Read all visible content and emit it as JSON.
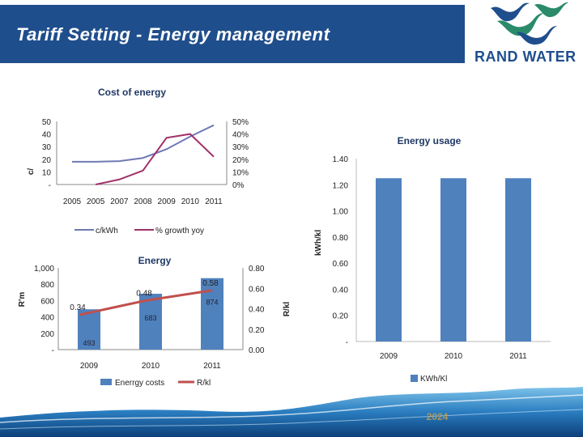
{
  "slide": {
    "title": "Tariff Setting - Energy management",
    "logo_text": "RAND WATER",
    "footer_label": "2024"
  },
  "colors": {
    "title_bar": "#1f4e8c",
    "series_blue_line": "#6e7ab3",
    "series_purple": "#a0306a",
    "bar_blue": "#4f81bd",
    "line_red": "#c0504d"
  },
  "chart_data": [
    {
      "type": "line",
      "title": "Cost of energy",
      "x": [
        "2005",
        "2005",
        "2007",
        "2008",
        "2009",
        "2010",
        "2011"
      ],
      "ylabel": "c/",
      "y_ticks": [
        "50",
        "40",
        "30",
        "20",
        "10",
        "-"
      ],
      "ylim": [
        0,
        50
      ],
      "y2_ticks": [
        "50%",
        "40%",
        "30%",
        "20%",
        "10%",
        "0%"
      ],
      "y2lim": [
        0,
        50
      ],
      "series": [
        {
          "name": "c/kWh",
          "axis": "left",
          "values": [
            18,
            18,
            18.5,
            21,
            28,
            38,
            47
          ]
        },
        {
          "name": "% growth yoy",
          "axis": "right",
          "values": [
            null,
            0,
            4,
            11,
            37,
            40,
            22
          ]
        }
      ]
    },
    {
      "type": "bar+line",
      "title": "Energy",
      "categories": [
        "2009",
        "2010",
        "2011"
      ],
      "ylabel": "R'm",
      "y_ticks": [
        "1,000",
        "800",
        "600",
        "400",
        "200",
        "-"
      ],
      "ylim": [
        0,
        1000
      ],
      "y2label": "R/kl",
      "y2_ticks": [
        "0.80",
        "0.60",
        "0.40",
        "0.20",
        "0.00"
      ],
      "y2lim": [
        0,
        0.8
      ],
      "series": [
        {
          "name": "Enerrgy costs",
          "type": "bar",
          "axis": "left",
          "values": [
            493,
            683,
            874
          ],
          "labels": [
            "493",
            "683",
            "874"
          ]
        },
        {
          "name": "R/kl",
          "type": "line",
          "axis": "right",
          "values": [
            0.34,
            0.48,
            0.58
          ],
          "labels": [
            "0.34",
            "0.48",
            "0.58"
          ]
        }
      ]
    },
    {
      "type": "bar",
      "title": "Energy usage",
      "categories": [
        "2009",
        "2010",
        "2011"
      ],
      "ylabel": "kWh/kl",
      "y_ticks": [
        "1.40",
        "1.20",
        "1.00",
        "0.80",
        "0.60",
        "0.40",
        "0.20",
        "-"
      ],
      "ylim": [
        0,
        1.4
      ],
      "series": [
        {
          "name": "KWh/Kl",
          "values": [
            1.25,
            1.25,
            1.25
          ]
        }
      ]
    }
  ]
}
